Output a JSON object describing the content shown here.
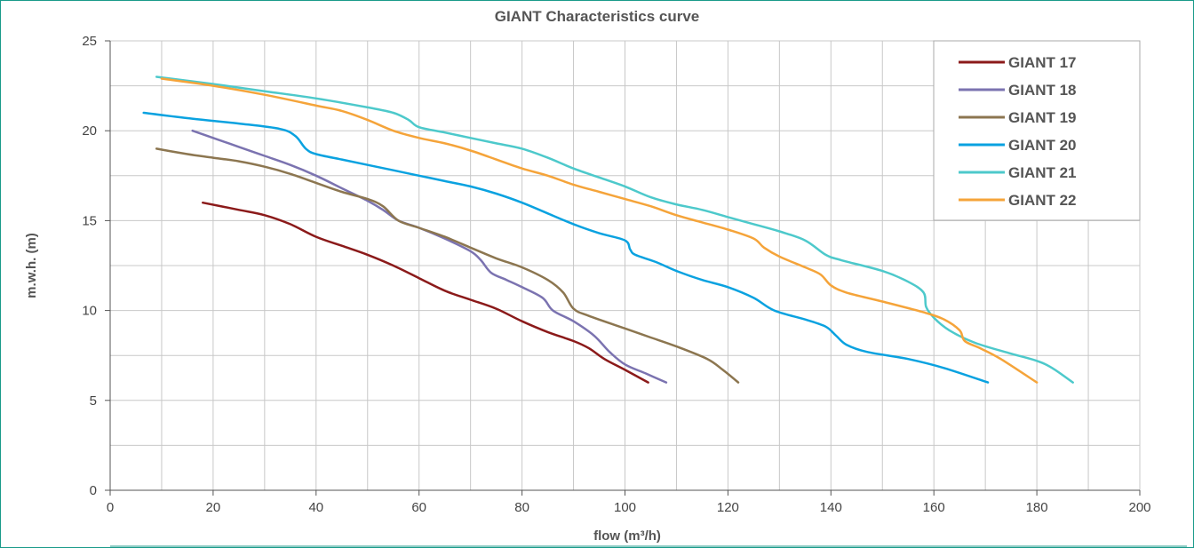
{
  "chart_data": {
    "type": "line",
    "title": "GIANT Characteristics curve",
    "xlabel": "flow (m³/h)",
    "ylabel": "m.w.h. (m)",
    "xlim": [
      0,
      200
    ],
    "ylim": [
      0,
      25
    ],
    "xticks": [
      0,
      20,
      40,
      60,
      80,
      100,
      120,
      140,
      160,
      180,
      200
    ],
    "yticks": [
      0,
      5,
      10,
      15,
      20,
      25
    ],
    "grid": true,
    "legend_position": "top-right",
    "series": [
      {
        "name": "GIANT 17",
        "color": "#8B1A1A",
        "points": [
          [
            18,
            16
          ],
          [
            25,
            15.6
          ],
          [
            30,
            15.3
          ],
          [
            35,
            14.8
          ],
          [
            40,
            14.1
          ],
          [
            45,
            13.6
          ],
          [
            50,
            13.1
          ],
          [
            55,
            12.5
          ],
          [
            60,
            11.8
          ],
          [
            65,
            11.1
          ],
          [
            70,
            10.6
          ],
          [
            75,
            10.1
          ],
          [
            80,
            9.4
          ],
          [
            85,
            8.8
          ],
          [
            90,
            8.3
          ],
          [
            93,
            7.9
          ],
          [
            96,
            7.3
          ],
          [
            100,
            6.7
          ],
          [
            104.5,
            6
          ]
        ]
      },
      {
        "name": "GIANT 18",
        "color": "#7B73B0",
        "points": [
          [
            16,
            20
          ],
          [
            20,
            19.6
          ],
          [
            25,
            19.1
          ],
          [
            30,
            18.6
          ],
          [
            35,
            18.1
          ],
          [
            40,
            17.5
          ],
          [
            45,
            16.8
          ],
          [
            50,
            16.1
          ],
          [
            53,
            15.6
          ],
          [
            56,
            15
          ],
          [
            60,
            14.6
          ],
          [
            65,
            14
          ],
          [
            70,
            13.3
          ],
          [
            72,
            12.8
          ],
          [
            74,
            12.1
          ],
          [
            77,
            11.7
          ],
          [
            80,
            11.3
          ],
          [
            84,
            10.7
          ],
          [
            86,
            10
          ],
          [
            90,
            9.4
          ],
          [
            94,
            8.6
          ],
          [
            97,
            7.7
          ],
          [
            100,
            7
          ],
          [
            104,
            6.5
          ],
          [
            108,
            6
          ]
        ]
      },
      {
        "name": "GIANT 19",
        "color": "#8C7650",
        "points": [
          [
            9,
            19
          ],
          [
            15,
            18.7
          ],
          [
            20,
            18.5
          ],
          [
            25,
            18.3
          ],
          [
            30,
            18
          ],
          [
            35,
            17.6
          ],
          [
            40,
            17.1
          ],
          [
            45,
            16.6
          ],
          [
            50,
            16.2
          ],
          [
            53,
            15.8
          ],
          [
            56,
            15
          ],
          [
            60,
            14.6
          ],
          [
            65,
            14.1
          ],
          [
            70,
            13.5
          ],
          [
            75,
            12.9
          ],
          [
            80,
            12.4
          ],
          [
            85,
            11.7
          ],
          [
            88,
            11
          ],
          [
            90,
            10.1
          ],
          [
            93,
            9.7
          ],
          [
            100,
            9
          ],
          [
            105,
            8.5
          ],
          [
            110,
            8
          ],
          [
            116,
            7.3
          ],
          [
            119,
            6.7
          ],
          [
            122,
            6
          ]
        ]
      },
      {
        "name": "GIANT 20",
        "color": "#0AA2E0",
        "points": [
          [
            6.5,
            21
          ],
          [
            15,
            20.7
          ],
          [
            25,
            20.4
          ],
          [
            33,
            20.1
          ],
          [
            36,
            19.7
          ],
          [
            38,
            19
          ],
          [
            40,
            18.7
          ],
          [
            45,
            18.4
          ],
          [
            50,
            18.1
          ],
          [
            55,
            17.8
          ],
          [
            60,
            17.5
          ],
          [
            65,
            17.2
          ],
          [
            70,
            16.9
          ],
          [
            75,
            16.5
          ],
          [
            80,
            16
          ],
          [
            85,
            15.4
          ],
          [
            90,
            14.8
          ],
          [
            95,
            14.3
          ],
          [
            100,
            13.9
          ],
          [
            101,
            13.4
          ],
          [
            102,
            13.1
          ],
          [
            106,
            12.7
          ],
          [
            110,
            12.2
          ],
          [
            115,
            11.7
          ],
          [
            120,
            11.3
          ],
          [
            125,
            10.7
          ],
          [
            129,
            10
          ],
          [
            135,
            9.5
          ],
          [
            139,
            9.1
          ],
          [
            141,
            8.6
          ],
          [
            143,
            8.1
          ],
          [
            147,
            7.7
          ],
          [
            155,
            7.3
          ],
          [
            162,
            6.8
          ],
          [
            170.5,
            6
          ]
        ]
      },
      {
        "name": "GIANT 21",
        "color": "#4DC9CB",
        "points": [
          [
            9,
            23
          ],
          [
            20,
            22.6
          ],
          [
            30,
            22.2
          ],
          [
            40,
            21.8
          ],
          [
            50,
            21.3
          ],
          [
            55,
            21
          ],
          [
            58,
            20.6
          ],
          [
            60,
            20.2
          ],
          [
            65,
            19.9
          ],
          [
            70,
            19.6
          ],
          [
            75,
            19.3
          ],
          [
            80,
            19
          ],
          [
            85,
            18.5
          ],
          [
            90,
            17.9
          ],
          [
            95,
            17.4
          ],
          [
            100,
            16.9
          ],
          [
            105,
            16.3
          ],
          [
            110,
            15.9
          ],
          [
            115,
            15.6
          ],
          [
            120,
            15.2
          ],
          [
            125,
            14.8
          ],
          [
            130,
            14.4
          ],
          [
            135,
            13.9
          ],
          [
            139,
            13.1
          ],
          [
            142,
            12.8
          ],
          [
            150,
            12.2
          ],
          [
            155,
            11.6
          ],
          [
            158,
            11
          ],
          [
            158.5,
            10.2
          ],
          [
            160,
            9.6
          ],
          [
            163,
            8.9
          ],
          [
            168,
            8.2
          ],
          [
            175,
            7.6
          ],
          [
            180,
            7.2
          ],
          [
            183,
            6.8
          ],
          [
            187,
            6
          ]
        ]
      },
      {
        "name": "GIANT 22",
        "color": "#F5A43A",
        "points": [
          [
            10,
            22.9
          ],
          [
            20,
            22.5
          ],
          [
            30,
            22
          ],
          [
            40,
            21.4
          ],
          [
            45,
            21.1
          ],
          [
            50,
            20.6
          ],
          [
            55,
            20
          ],
          [
            60,
            19.6
          ],
          [
            65,
            19.3
          ],
          [
            70,
            18.9
          ],
          [
            75,
            18.4
          ],
          [
            80,
            17.9
          ],
          [
            85,
            17.5
          ],
          [
            90,
            17
          ],
          [
            95,
            16.6
          ],
          [
            100,
            16.2
          ],
          [
            105,
            15.8
          ],
          [
            110,
            15.3
          ],
          [
            115,
            14.9
          ],
          [
            120,
            14.5
          ],
          [
            125,
            14
          ],
          [
            127,
            13.5
          ],
          [
            130,
            13
          ],
          [
            135,
            12.4
          ],
          [
            138,
            12
          ],
          [
            140,
            11.4
          ],
          [
            143,
            11
          ],
          [
            150,
            10.5
          ],
          [
            158,
            9.9
          ],
          [
            162,
            9.5
          ],
          [
            165,
            8.9
          ],
          [
            166,
            8.3
          ],
          [
            169,
            7.9
          ],
          [
            173,
            7.3
          ],
          [
            180,
            6
          ]
        ]
      }
    ]
  }
}
